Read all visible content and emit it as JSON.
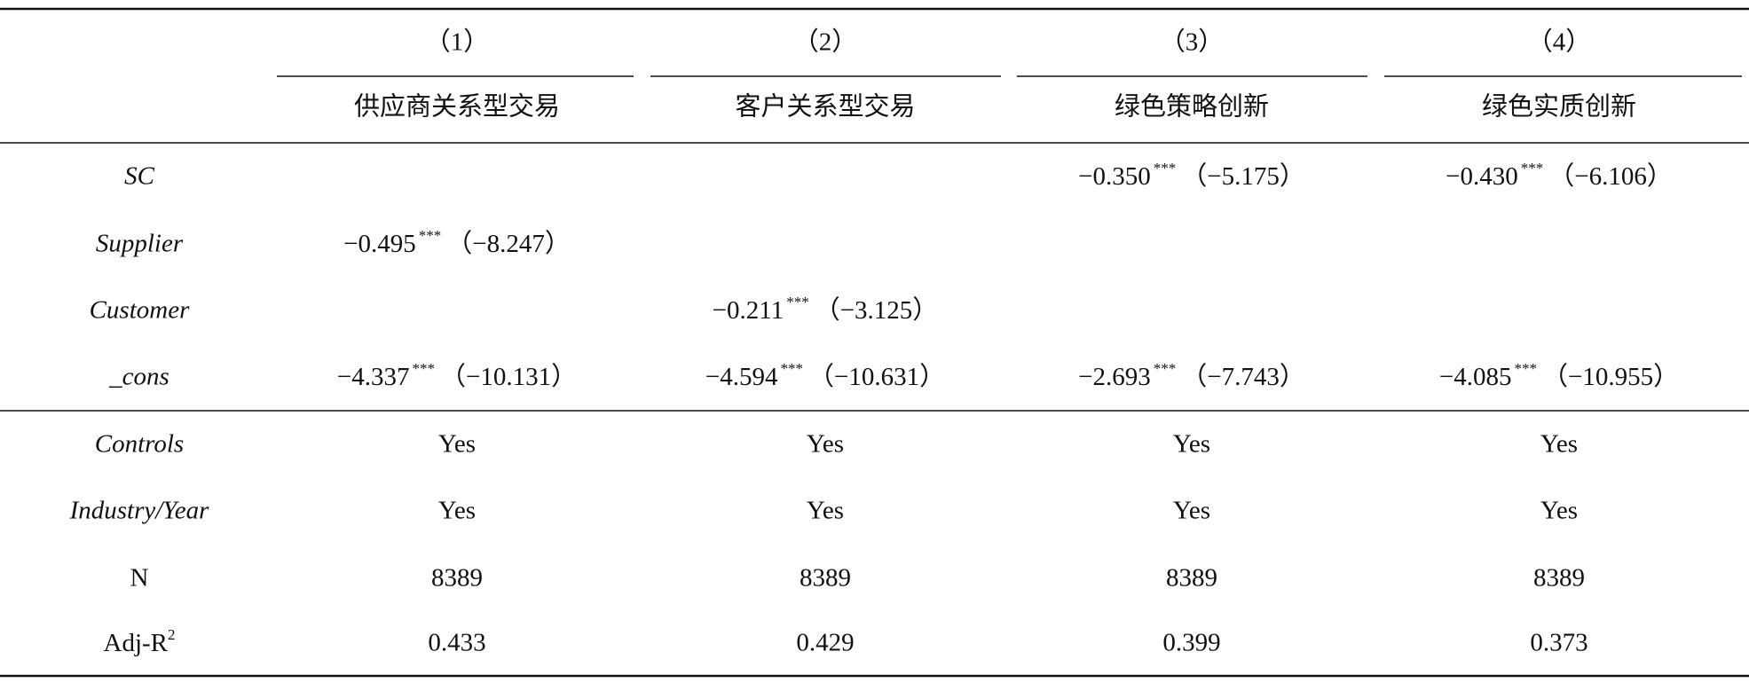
{
  "table": {
    "header": {
      "numbers": [
        "（1）",
        "（2）",
        "（3）",
        "（4）"
      ],
      "titles": [
        "供应商关系型交易",
        "客户关系型交易",
        "绿色策略创新",
        "绿色实质创新"
      ]
    },
    "rows": [
      {
        "label": "SC",
        "cells": [
          null,
          null,
          {
            "coef": "−0.350",
            "stars": "***",
            "t": "（−5.175）"
          },
          {
            "coef": "−0.430",
            "stars": "***",
            "t": "（−6.106）"
          }
        ]
      },
      {
        "label": "Supplier",
        "cells": [
          {
            "coef": "−0.495",
            "stars": "***",
            "t": "（−8.247）"
          },
          null,
          null,
          null
        ]
      },
      {
        "label": "Customer",
        "cells": [
          null,
          {
            "coef": "−0.211",
            "stars": "***",
            "t": "（−3.125）"
          },
          null,
          null
        ]
      },
      {
        "label": "_cons",
        "cells": [
          {
            "coef": "−4.337",
            "stars": "***",
            "t": "（−10.131）"
          },
          {
            "coef": "−4.594",
            "stars": "***",
            "t": "（−10.631）"
          },
          {
            "coef": "−2.693",
            "stars": "***",
            "t": "（−7.743）"
          },
          {
            "coef": "−4.085",
            "stars": "***",
            "t": "（−10.955）"
          }
        ]
      }
    ],
    "footer_rows": [
      {
        "label": "Controls",
        "cells": [
          "Yes",
          "Yes",
          "Yes",
          "Yes"
        ]
      },
      {
        "label": "Industry/Year",
        "cells": [
          "Yes",
          "Yes",
          "Yes",
          "Yes"
        ]
      },
      {
        "label": "N",
        "cells": [
          "8389",
          "8389",
          "8389",
          "8389"
        ]
      },
      {
        "label": {
          "text": "Adj-R",
          "sup": "2"
        },
        "cells": [
          "0.433",
          "0.429",
          "0.399",
          "0.373"
        ]
      }
    ]
  }
}
